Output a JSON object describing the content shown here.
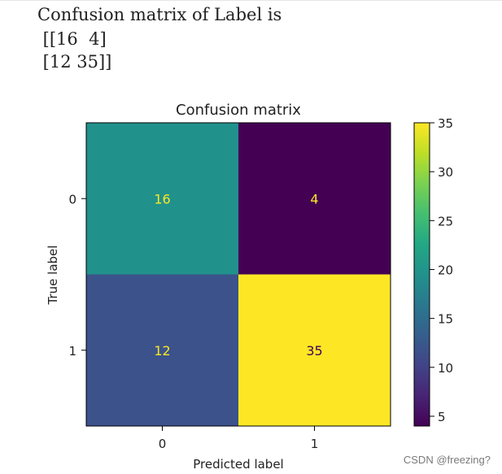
{
  "console": {
    "lines": [
      "Confusion matrix of Label is",
      " [[16  4]",
      " [12 35]]"
    ]
  },
  "chart_data": {
    "type": "heatmap",
    "title": "Confusion matrix",
    "xlabel": "Predicted label",
    "ylabel": "True label",
    "x_categories": [
      "0",
      "1"
    ],
    "y_categories": [
      "0",
      "1"
    ],
    "values": [
      [
        16,
        4
      ],
      [
        12,
        35
      ]
    ],
    "colormap": "viridis",
    "colorbar": {
      "range": [
        4,
        35
      ],
      "ticks": [
        5,
        10,
        15,
        20,
        25,
        30,
        35
      ]
    },
    "cell_colors": {
      "c00": "#21918c",
      "c01": "#440154",
      "c10": "#3b528b",
      "c11": "#fde725"
    },
    "annotation_colors": {
      "on_dark": "#fde725",
      "on_light": "#440154"
    }
  },
  "watermark": "CSDN @freezing?"
}
